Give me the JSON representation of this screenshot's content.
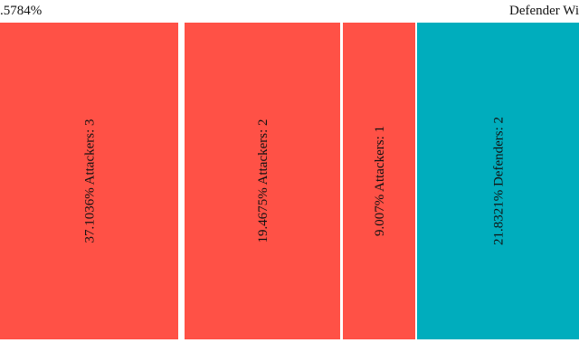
{
  "header": {
    "left_label": ".5784%",
    "right_label": "Defender Wi"
  },
  "colors": {
    "attackers": "#FF5146",
    "defenders": "#00ADBD"
  },
  "chart_data": {
    "type": "bar",
    "orientation": "mosaic",
    "categories": [
      "Attackers: 3",
      "Attackers: 2",
      "Attackers: 1",
      "Defenders: 2"
    ],
    "values": [
      37.1036,
      19.4675,
      9.007,
      21.8321
    ],
    "labels": [
      "37.1036% Attackers: 3",
      "19.4675% Attackers: 2",
      "9.007% Attackers: 1",
      "21.8321% Defenders: 2"
    ],
    "groups": [
      "attackers",
      "attackers",
      "attackers",
      "defenders"
    ],
    "grid": false,
    "legend": "none"
  }
}
